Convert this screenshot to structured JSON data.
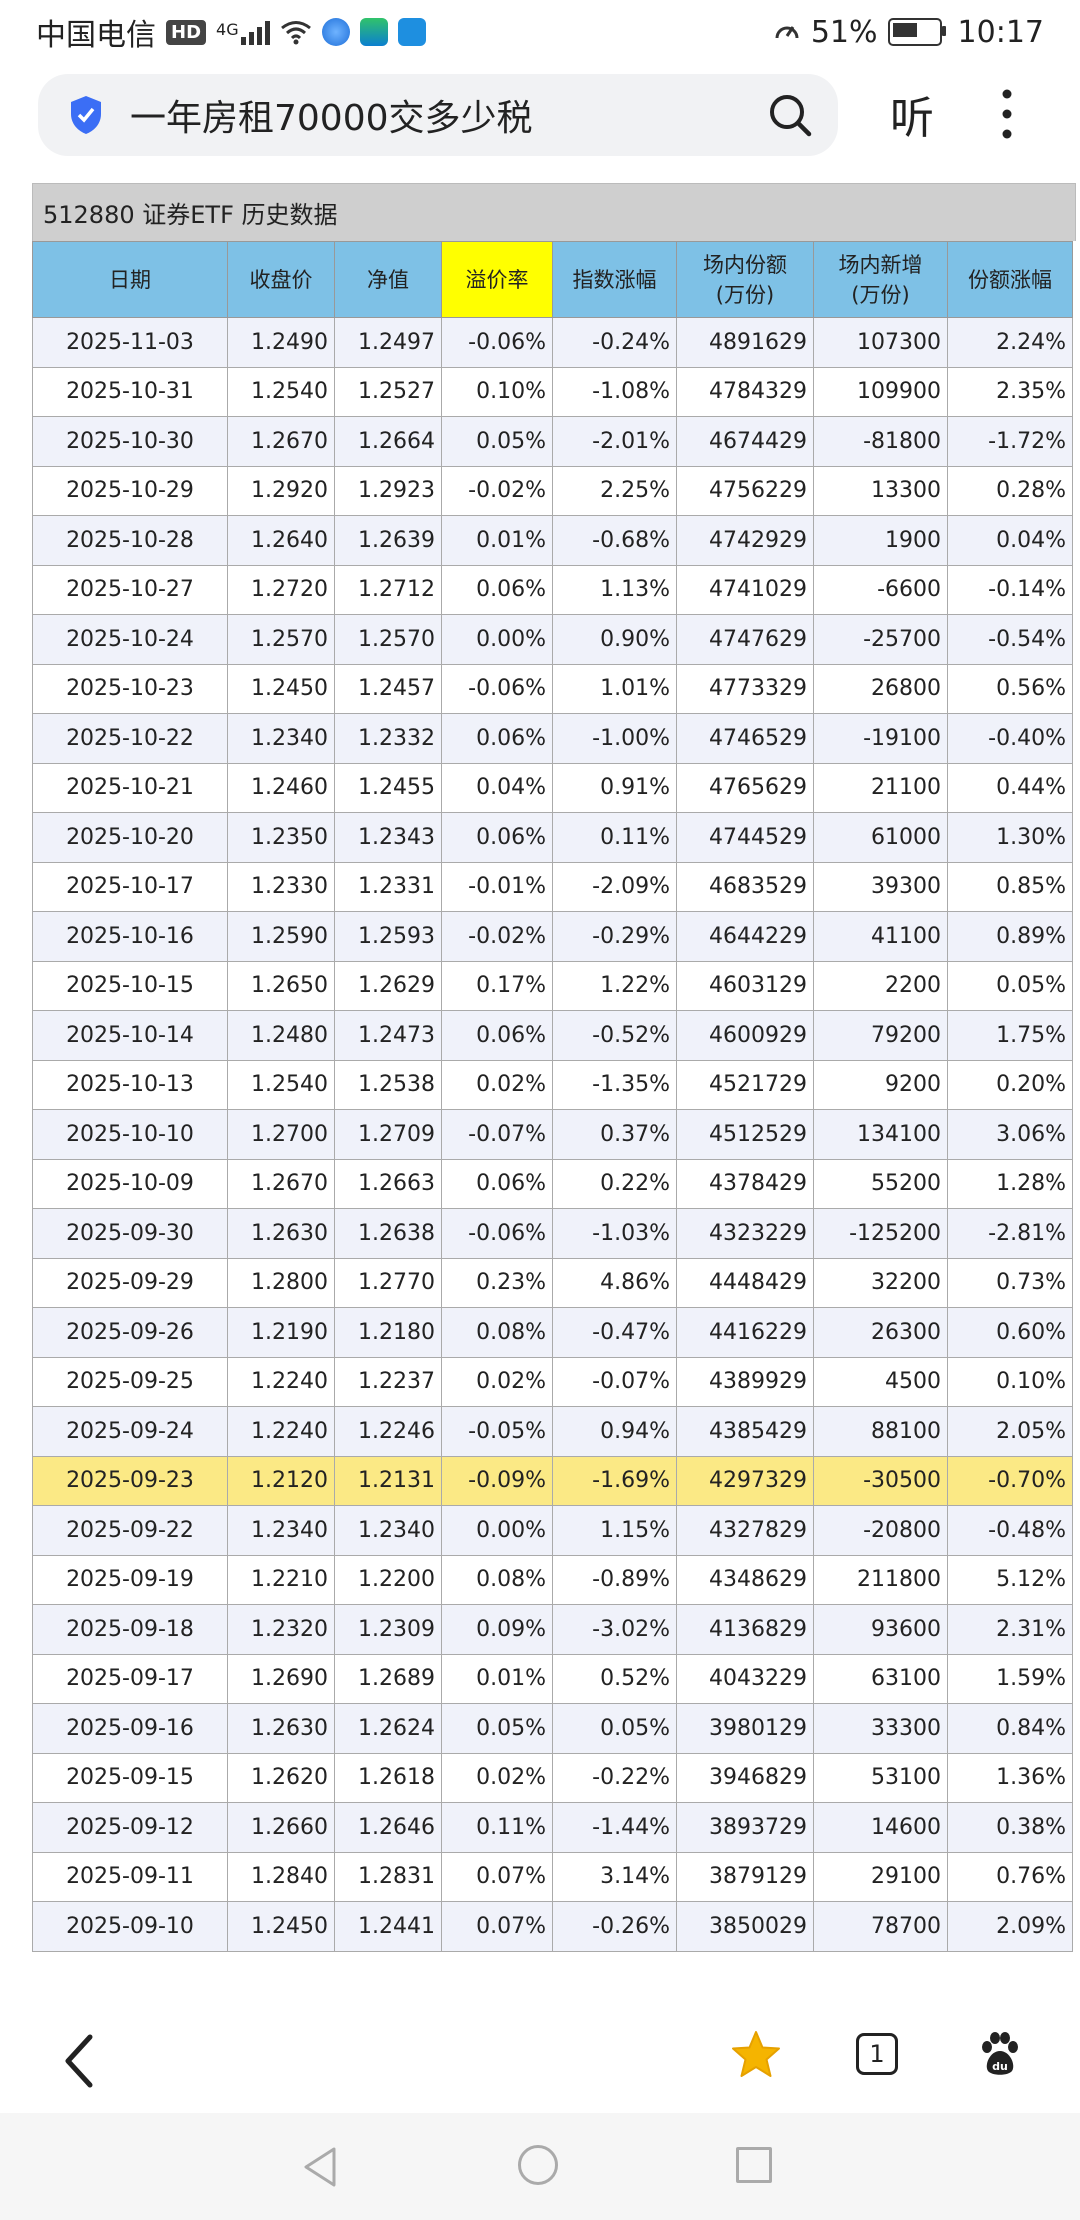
{
  "status": {
    "carrier": "中国电信",
    "hd": "HD",
    "network": "4G",
    "battery_pct": "51%",
    "time": "10:17"
  },
  "search": {
    "query": "一年房租70000交多少税",
    "listen": "听"
  },
  "table": {
    "caption": "512880 证券ETF 历史数据",
    "headers": [
      "日期",
      "收盘价",
      "净值",
      "溢价率",
      "指数涨幅",
      "场内份额\n(万份)",
      "场内新增\n(万份)",
      "份额涨幅"
    ],
    "rows": [
      [
        "2025-11-03",
        "1.2490",
        "1.2497",
        "-0.06%",
        "-0.24%",
        "4891629",
        "107300",
        "2.24%"
      ],
      [
        "2025-10-31",
        "1.2540",
        "1.2527",
        "0.10%",
        "-1.08%",
        "4784329",
        "109900",
        "2.35%"
      ],
      [
        "2025-10-30",
        "1.2670",
        "1.2664",
        "0.05%",
        "-2.01%",
        "4674429",
        "-81800",
        "-1.72%"
      ],
      [
        "2025-10-29",
        "1.2920",
        "1.2923",
        "-0.02%",
        "2.25%",
        "4756229",
        "13300",
        "0.28%"
      ],
      [
        "2025-10-28",
        "1.2640",
        "1.2639",
        "0.01%",
        "-0.68%",
        "4742929",
        "1900",
        "0.04%"
      ],
      [
        "2025-10-27",
        "1.2720",
        "1.2712",
        "0.06%",
        "1.13%",
        "4741029",
        "-6600",
        "-0.14%"
      ],
      [
        "2025-10-24",
        "1.2570",
        "1.2570",
        "0.00%",
        "0.90%",
        "4747629",
        "-25700",
        "-0.54%"
      ],
      [
        "2025-10-23",
        "1.2450",
        "1.2457",
        "-0.06%",
        "1.01%",
        "4773329",
        "26800",
        "0.56%"
      ],
      [
        "2025-10-22",
        "1.2340",
        "1.2332",
        "0.06%",
        "-1.00%",
        "4746529",
        "-19100",
        "-0.40%"
      ],
      [
        "2025-10-21",
        "1.2460",
        "1.2455",
        "0.04%",
        "0.91%",
        "4765629",
        "21100",
        "0.44%"
      ],
      [
        "2025-10-20",
        "1.2350",
        "1.2343",
        "0.06%",
        "0.11%",
        "4744529",
        "61000",
        "1.30%"
      ],
      [
        "2025-10-17",
        "1.2330",
        "1.2331",
        "-0.01%",
        "-2.09%",
        "4683529",
        "39300",
        "0.85%"
      ],
      [
        "2025-10-16",
        "1.2590",
        "1.2593",
        "-0.02%",
        "-0.29%",
        "4644229",
        "41100",
        "0.89%"
      ],
      [
        "2025-10-15",
        "1.2650",
        "1.2629",
        "0.17%",
        "1.22%",
        "4603129",
        "2200",
        "0.05%"
      ],
      [
        "2025-10-14",
        "1.2480",
        "1.2473",
        "0.06%",
        "-0.52%",
        "4600929",
        "79200",
        "1.75%"
      ],
      [
        "2025-10-13",
        "1.2540",
        "1.2538",
        "0.02%",
        "-1.35%",
        "4521729",
        "9200",
        "0.20%"
      ],
      [
        "2025-10-10",
        "1.2700",
        "1.2709",
        "-0.07%",
        "0.37%",
        "4512529",
        "134100",
        "3.06%"
      ],
      [
        "2025-10-09",
        "1.2670",
        "1.2663",
        "0.06%",
        "0.22%",
        "4378429",
        "55200",
        "1.28%"
      ],
      [
        "2025-09-30",
        "1.2630",
        "1.2638",
        "-0.06%",
        "-1.03%",
        "4323229",
        "-125200",
        "-2.81%"
      ],
      [
        "2025-09-29",
        "1.2800",
        "1.2770",
        "0.23%",
        "4.86%",
        "4448429",
        "32200",
        "0.73%"
      ],
      [
        "2025-09-26",
        "1.2190",
        "1.2180",
        "0.08%",
        "-0.47%",
        "4416229",
        "26300",
        "0.60%"
      ],
      [
        "2025-09-25",
        "1.2240",
        "1.2237",
        "0.02%",
        "-0.07%",
        "4389929",
        "4500",
        "0.10%"
      ],
      [
        "2025-09-24",
        "1.2240",
        "1.2246",
        "-0.05%",
        "0.94%",
        "4385429",
        "88100",
        "2.05%"
      ],
      [
        "2025-09-23",
        "1.2120",
        "1.2131",
        "-0.09%",
        "-1.69%",
        "4297329",
        "-30500",
        "-0.70%"
      ],
      [
        "2025-09-22",
        "1.2340",
        "1.2340",
        "0.00%",
        "1.15%",
        "4327829",
        "-20800",
        "-0.48%"
      ],
      [
        "2025-09-19",
        "1.2210",
        "1.2200",
        "0.08%",
        "-0.89%",
        "4348629",
        "211800",
        "5.12%"
      ],
      [
        "2025-09-18",
        "1.2320",
        "1.2309",
        "0.09%",
        "-3.02%",
        "4136829",
        "93600",
        "2.31%"
      ],
      [
        "2025-09-17",
        "1.2690",
        "1.2689",
        "0.01%",
        "0.52%",
        "4043229",
        "63100",
        "1.59%"
      ],
      [
        "2025-09-16",
        "1.2630",
        "1.2624",
        "0.05%",
        "0.05%",
        "3980129",
        "33300",
        "0.84%"
      ],
      [
        "2025-09-15",
        "1.2620",
        "1.2618",
        "0.02%",
        "-0.22%",
        "3946829",
        "53100",
        "1.36%"
      ],
      [
        "2025-09-12",
        "1.2660",
        "1.2646",
        "0.11%",
        "-1.44%",
        "3893729",
        "14600",
        "0.38%"
      ],
      [
        "2025-09-11",
        "1.2840",
        "1.2831",
        "0.07%",
        "3.14%",
        "3879129",
        "29100",
        "0.76%"
      ],
      [
        "2025-09-10",
        "1.2450",
        "1.2441",
        "0.07%",
        "-0.26%",
        "3850029",
        "78700",
        "2.09%"
      ]
    ],
    "highlight_row_date": "2025-09-23",
    "highlight_header": "溢价率"
  },
  "bottom_nav": {
    "tab_count": "1"
  },
  "colors": {
    "header_bg": "#7ec1e6",
    "header_highlight": "#ffff00",
    "row_highlight": "#fbe985",
    "odd_row": "#f0f2fa",
    "star": "#f5b400"
  }
}
